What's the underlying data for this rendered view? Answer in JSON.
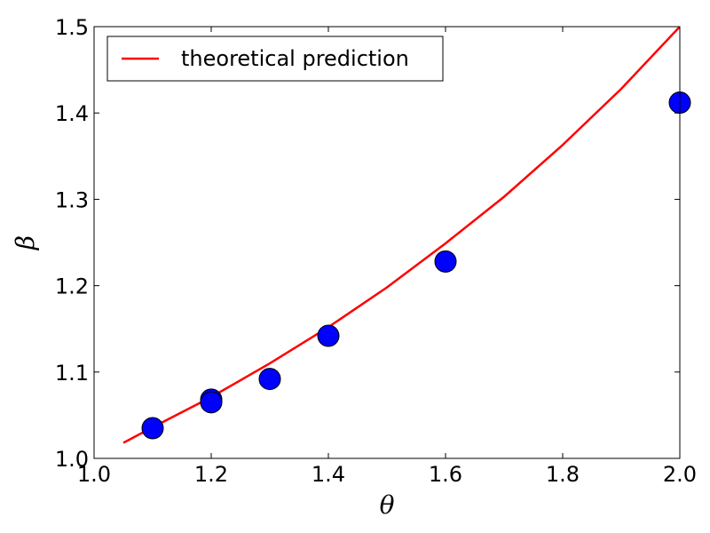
{
  "chart_data": {
    "type": "scatter",
    "xlabel": "θ",
    "ylabel": "β",
    "xlim": [
      1.0,
      2.0
    ],
    "ylim": [
      1.0,
      1.5
    ],
    "xticks": [
      1.0,
      1.2,
      1.4,
      1.6,
      1.8,
      2.0
    ],
    "xtick_labels": [
      "1.0",
      "1.2",
      "1.4",
      "1.6",
      "1.8",
      "2.0"
    ],
    "yticks": [
      1.0,
      1.1,
      1.2,
      1.3,
      1.4,
      1.5
    ],
    "ytick_labels": [
      "1.0",
      "1.1",
      "1.2",
      "1.3",
      "1.4",
      "1.5"
    ],
    "grid": false,
    "legend_position": "top-left",
    "series": [
      {
        "name": "theoretical prediction",
        "kind": "line",
        "color": "#ff0000",
        "x": [
          1.05,
          1.1,
          1.2,
          1.3,
          1.4,
          1.5,
          1.6,
          1.7,
          1.8,
          1.9,
          2.0
        ],
        "y": [
          1.018,
          1.036,
          1.071,
          1.11,
          1.152,
          1.198,
          1.249,
          1.303,
          1.363,
          1.428,
          1.5
        ]
      },
      {
        "kind": "scatter",
        "color": "#0000ff",
        "x": [
          1.1,
          1.2,
          1.2,
          1.3,
          1.4,
          1.6,
          2.0
        ],
        "y": [
          1.035,
          1.068,
          1.065,
          1.092,
          1.142,
          1.228,
          1.412
        ]
      }
    ]
  }
}
